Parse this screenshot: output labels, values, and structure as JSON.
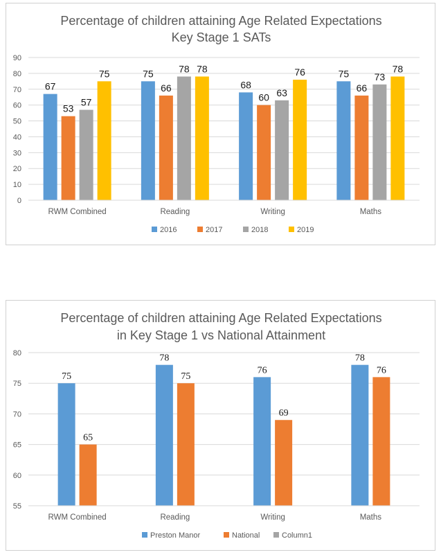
{
  "chart_data": [
    {
      "type": "bar",
      "title": [
        "Percentage of children attaining Age Related Expectations",
        "Key Stage 1 SATs"
      ],
      "categories": [
        "RWM Combined",
        "Reading",
        "Writing",
        "Maths"
      ],
      "series": [
        {
          "name": "2016",
          "color": "#5B9BD5",
          "values": [
            67,
            75,
            68,
            75
          ]
        },
        {
          "name": "2017",
          "color": "#ED7D31",
          "values": [
            53,
            66,
            60,
            66
          ]
        },
        {
          "name": "2018",
          "color": "#A5A5A5",
          "values": [
            57,
            78,
            63,
            73
          ]
        },
        {
          "name": "2019",
          "color": "#FFC000",
          "values": [
            75,
            78,
            76,
            78
          ]
        }
      ],
      "ylim": [
        0,
        90
      ],
      "yticks": [
        "0",
        "10",
        "20",
        "30",
        "40",
        "50",
        "60",
        "70",
        "80",
        "90"
      ],
      "grid": true,
      "legend": "bottom"
    },
    {
      "type": "bar",
      "title": [
        "Percentage of children attaining Age Related Expectations",
        "in Key Stage 1 vs National Attainment"
      ],
      "categories": [
        "RWM Combined",
        "Reading",
        "Writing",
        "Maths"
      ],
      "series": [
        {
          "name": "Preston Manor",
          "color": "#5B9BD5",
          "values": [
            75,
            78,
            76,
            78
          ]
        },
        {
          "name": "National",
          "color": "#ED7D31",
          "values": [
            65,
            75,
            69,
            76
          ]
        },
        {
          "name": "Column1",
          "color": "#A5A5A5",
          "values": [
            null,
            null,
            null,
            null
          ]
        }
      ],
      "ylim": [
        55,
        80
      ],
      "yticks": [
        "55",
        "60",
        "65",
        "70",
        "75",
        "80"
      ],
      "grid": true,
      "legend": "bottom"
    }
  ]
}
